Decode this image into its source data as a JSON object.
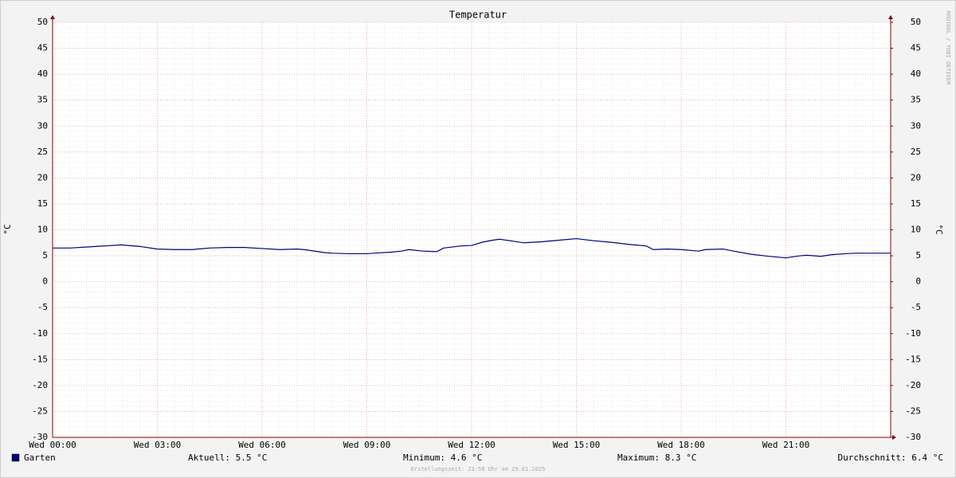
{
  "chart_data": {
    "type": "line",
    "title": "Temperatur",
    "y_label": "°C",
    "y2_label": "°C",
    "x": [
      0,
      0.5,
      1,
      1.5,
      1.96,
      2.5,
      3,
      3.5,
      4,
      4.5,
      5,
      5.5,
      6,
      6.5,
      7,
      7.2,
      7.8,
      8,
      8.5,
      9,
      9.2,
      9.7,
      10,
      10.2,
      10.6,
      11,
      11.2,
      11.7,
      12,
      12.3,
      12.6,
      12.8,
      13.2,
      13.5,
      14,
      14.5,
      15,
      15.5,
      16,
      16.5,
      17,
      17.2,
      17.6,
      18,
      18.5,
      18.7,
      19.2,
      19.5,
      20,
      20.5,
      21,
      21.4,
      21.6,
      22,
      22.3,
      22.7,
      23,
      24
    ],
    "xlim": [
      0,
      24
    ],
    "xticks": [
      {
        "value": 0,
        "label": "Wed 00:00"
      },
      {
        "value": 3,
        "label": "Wed 03:00"
      },
      {
        "value": 6,
        "label": "Wed 06:00"
      },
      {
        "value": 9,
        "label": "Wed 09:00"
      },
      {
        "value": 12,
        "label": "Wed 12:00"
      },
      {
        "value": 15,
        "label": "Wed 15:00"
      },
      {
        "value": 18,
        "label": "Wed 18:00"
      },
      {
        "value": 21,
        "label": "Wed 21:00"
      }
    ],
    "ylim": [
      -30,
      50
    ],
    "yticks": [
      -30,
      -25,
      -20,
      -15,
      -10,
      -5,
      0,
      5,
      10,
      15,
      20,
      25,
      30,
      35,
      40,
      45,
      50
    ],
    "y2lim": [
      -30,
      50
    ],
    "y2ticks": [
      -30,
      -25,
      -20,
      -15,
      -10,
      -5,
      0,
      5,
      10,
      15,
      20,
      25,
      30,
      35,
      40,
      45,
      50
    ],
    "grid": true,
    "series": [
      {
        "name": "Garten",
        "color": "#00007f",
        "values": [
          6.5,
          6.5,
          6.7,
          6.9,
          7.1,
          6.8,
          6.3,
          6.2,
          6.2,
          6.5,
          6.6,
          6.6,
          6.4,
          6.2,
          6.3,
          6.2,
          5.6,
          5.5,
          5.4,
          5.4,
          5.5,
          5.7,
          5.9,
          6.2,
          5.9,
          5.8,
          6.5,
          6.9,
          7.0,
          7.6,
          8.0,
          8.2,
          7.8,
          7.5,
          7.7,
          8.0,
          8.3,
          7.9,
          7.6,
          7.2,
          6.9,
          6.2,
          6.3,
          6.2,
          5.9,
          6.2,
          6.3,
          5.9,
          5.3,
          4.9,
          4.6,
          5.0,
          5.1,
          4.9,
          5.2,
          5.4,
          5.5,
          5.5
        ]
      }
    ],
    "legend_stats": [
      "Aktuell: 5.5 °C",
      "Minimum: 4.6 °C",
      "Maximum: 8.3 °C",
      "Durchschnitt: 6.4 °C"
    ],
    "watermark": "RRDTOOL / TOBI OETIKER",
    "footer": "Erstellungszeit: 23:58 Uhr am 29.01.2025"
  }
}
